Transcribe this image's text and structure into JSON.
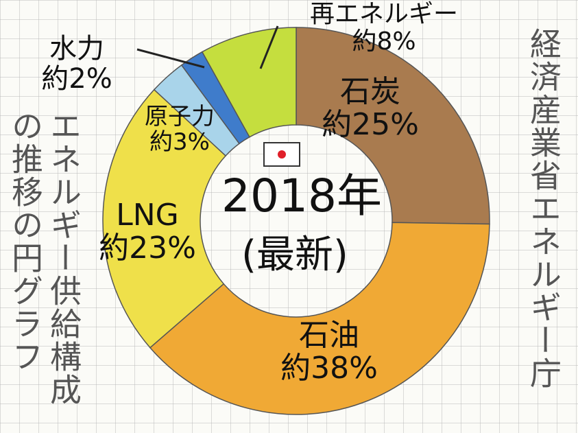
{
  "chart_data": {
    "type": "donut",
    "title": "2018年",
    "subtitle": "(最新)",
    "categories": [
      "石炭",
      "石油",
      "LNG",
      "原子力",
      "水力",
      "再エネルギー"
    ],
    "values": [
      25,
      38,
      23,
      3,
      2,
      8
    ],
    "value_labels": [
      "約25%",
      "約38%",
      "約23%",
      "約3%",
      "約2%",
      "約8%"
    ],
    "colors": [
      "#a97b4f",
      "#f0a935",
      "#efe04a",
      "#a9d4ea",
      "#3f7ccb",
      "#c5de3e"
    ],
    "annotations": [
      "経済産業省エネルギー庁",
      "エネルギー供給構成",
      "の推移の円グラフ"
    ]
  }
}
